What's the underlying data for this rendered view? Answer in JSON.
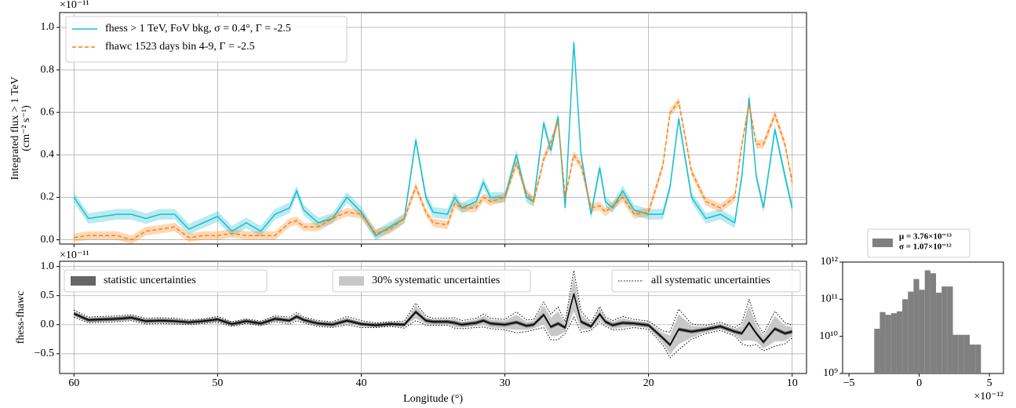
{
  "chart_data": [
    {
      "type": "line",
      "x": [
        60,
        59,
        58,
        57,
        56,
        55,
        54,
        53,
        52,
        51,
        50,
        49,
        48,
        47,
        46,
        45,
        44.5,
        44,
        43,
        42,
        41,
        40,
        39,
        38,
        37,
        36.2,
        35.5,
        35,
        34,
        33.5,
        33,
        32,
        31.5,
        31,
        30,
        29.2,
        28.5,
        28,
        27.3,
        26.8,
        26.3,
        25.8,
        25.2,
        24.7,
        24,
        23.4,
        23,
        22.5,
        21.8,
        21,
        20,
        19,
        18.5,
        17.9,
        17,
        16,
        15,
        14,
        13.5,
        13,
        12.5,
        12,
        11.2,
        10.5,
        10
      ],
      "xlim": [
        61,
        9
      ],
      "xticks": [
        60,
        50,
        40,
        30,
        20,
        10
      ],
      "ylim": [
        -0.02,
        1.07
      ],
      "yticks": [
        {
          "value": 0,
          "label": "0.0"
        },
        0.2,
        0.4,
        0.6,
        0.8,
        {
          "value": 1,
          "label": "1.0"
        }
      ],
      "y_offset_label": "×10⁻¹¹",
      "ylabel": [
        "Integrated flux > 1 TeV",
        "(cm⁻² s⁻¹)"
      ],
      "grid": true,
      "legend": "upper left",
      "series": [
        {
          "name": "fhess > 1 TeV, FoV bkg, σ = 0.4°, Γ = -2.5",
          "color": "#17becf",
          "linestyle": "solid",
          "band_error": 0.025,
          "values": [
            0.2,
            0.1,
            0.11,
            0.12,
            0.12,
            0.1,
            0.12,
            0.12,
            0.05,
            0.08,
            0.11,
            0.04,
            0.08,
            0.04,
            0.12,
            0.15,
            0.23,
            0.14,
            0.08,
            0.1,
            0.2,
            0.13,
            0.02,
            0.06,
            0.1,
            0.47,
            0.2,
            0.13,
            0.12,
            0.2,
            0.15,
            0.18,
            0.27,
            0.2,
            0.2,
            0.4,
            0.2,
            0.18,
            0.55,
            0.42,
            0.58,
            0.15,
            0.93,
            0.4,
            0.12,
            0.34,
            0.18,
            0.15,
            0.23,
            0.14,
            0.12,
            0.12,
            0.25,
            0.57,
            0.2,
            0.1,
            0.12,
            0.08,
            0.3,
            0.67,
            0.3,
            0.15,
            0.52,
            0.3,
            0.15
          ]
        },
        {
          "name": "fhawc 1523 days bin 4-9, Γ = -2.5",
          "color": "#ff7f0e",
          "linestyle": "dashed",
          "band_error": 0.02,
          "values": [
            0.01,
            0.02,
            0.02,
            0.02,
            0.0,
            0.04,
            0.05,
            0.06,
            0.01,
            0.02,
            0.02,
            0.03,
            0.02,
            0.02,
            0.02,
            0.08,
            0.09,
            0.06,
            0.06,
            0.1,
            0.13,
            0.12,
            0.03,
            0.05,
            0.1,
            0.25,
            0.13,
            0.08,
            0.07,
            0.17,
            0.15,
            0.15,
            0.2,
            0.18,
            0.2,
            0.36,
            0.22,
            0.18,
            0.38,
            0.46,
            0.56,
            0.2,
            0.4,
            0.35,
            0.15,
            0.16,
            0.13,
            0.16,
            0.2,
            0.12,
            0.13,
            0.35,
            0.6,
            0.65,
            0.32,
            0.18,
            0.15,
            0.2,
            0.45,
            0.64,
            0.45,
            0.45,
            0.59,
            0.45,
            0.27
          ]
        }
      ]
    },
    {
      "type": "residual",
      "ylim": [
        -0.84,
        1.09
      ],
      "yticks": [
        {
          "value": -0.5,
          "label": "−0.5"
        },
        {
          "value": 0,
          "label": "0.0"
        },
        0.5,
        {
          "value": 1,
          "label": "1.0"
        }
      ],
      "y_offset_label": "×10⁻¹¹",
      "ylabel": "fhess-fhawc",
      "xlabel": "Longitude (°)",
      "color": "#000000",
      "values": [
        0.19,
        0.08,
        0.09,
        0.1,
        0.12,
        0.06,
        0.07,
        0.06,
        0.04,
        0.06,
        0.09,
        0.01,
        0.06,
        0.02,
        0.1,
        0.07,
        0.14,
        0.08,
        0.02,
        0.0,
        0.07,
        0.01,
        -0.01,
        0.01,
        0.0,
        0.22,
        0.07,
        0.05,
        0.05,
        0.03,
        0.0,
        0.03,
        0.07,
        0.02,
        0.0,
        0.04,
        -0.02,
        0.0,
        0.17,
        -0.04,
        0.02,
        -0.05,
        0.53,
        0.05,
        -0.03,
        0.18,
        0.05,
        -0.01,
        0.03,
        0.02,
        -0.01,
        -0.23,
        -0.35,
        -0.08,
        -0.12,
        -0.08,
        -0.03,
        -0.12,
        -0.15,
        0.03,
        -0.15,
        -0.3,
        -0.07,
        -0.15,
        -0.12
      ],
      "bands": [
        {
          "name": "statistic uncertainties",
          "color": "#666666",
          "error": 0.03
        },
        {
          "name": "30% systematic uncertainties",
          "color": "#c8c8c8",
          "errors": [
            0.04,
            0.04,
            0.04,
            0.04,
            0.04,
            0.04,
            0.04,
            0.04,
            0.03,
            0.03,
            0.04,
            0.03,
            0.03,
            0.03,
            0.04,
            0.04,
            0.05,
            0.04,
            0.04,
            0.04,
            0.05,
            0.04,
            0.03,
            0.03,
            0.04,
            0.11,
            0.06,
            0.04,
            0.04,
            0.07,
            0.05,
            0.06,
            0.08,
            0.07,
            0.07,
            0.13,
            0.07,
            0.07,
            0.16,
            0.16,
            0.21,
            0.07,
            0.3,
            0.13,
            0.05,
            0.1,
            0.06,
            0.06,
            0.08,
            0.05,
            0.05,
            0.09,
            0.16,
            0.26,
            0.1,
            0.05,
            0.05,
            0.05,
            0.13,
            0.3,
            0.14,
            0.11,
            0.22,
            0.13,
            0.08
          ]
        },
        {
          "name": "all systematic uncertainties",
          "color": "#000000",
          "linestyle": "dotted",
          "errors": [
            0.06,
            0.05,
            0.05,
            0.05,
            0.05,
            0.05,
            0.05,
            0.05,
            0.04,
            0.04,
            0.05,
            0.04,
            0.04,
            0.04,
            0.05,
            0.06,
            0.07,
            0.05,
            0.05,
            0.05,
            0.07,
            0.06,
            0.04,
            0.04,
            0.06,
            0.15,
            0.08,
            0.06,
            0.06,
            0.09,
            0.07,
            0.08,
            0.11,
            0.09,
            0.09,
            0.18,
            0.1,
            0.09,
            0.22,
            0.22,
            0.28,
            0.1,
            0.4,
            0.18,
            0.07,
            0.13,
            0.08,
            0.08,
            0.11,
            0.07,
            0.07,
            0.12,
            0.22,
            0.35,
            0.13,
            0.07,
            0.07,
            0.07,
            0.18,
            0.4,
            0.19,
            0.15,
            0.3,
            0.18,
            0.11
          ]
        }
      ]
    },
    {
      "type": "histogram",
      "bins": [
        -3.2,
        -2.8,
        -2.4,
        -2.0,
        -1.6,
        -1.2,
        -0.8,
        -0.4,
        0.0,
        0.4,
        0.8,
        1.2,
        1.6,
        2.0,
        2.4,
        2.8,
        3.2,
        3.6,
        4.0,
        4.4
      ],
      "counts": [
        16000000000.0,
        45000000000.0,
        38000000000.0,
        42000000000.0,
        47000000000.0,
        100000000000.0,
        160000000000.0,
        350000000000.0,
        180000000000.0,
        600000000000.0,
        500000000000.0,
        150000000000.0,
        220000000000.0,
        220000000000.0,
        11000000000.0,
        11000000000.0,
        11000000000.0,
        6000000000.0,
        6000000000.0
      ],
      "color": "#808080",
      "xlim": [
        -5.45,
        6.0
      ],
      "xticks": [
        {
          "value": -5,
          "label": "−5"
        },
        0,
        5
      ],
      "x_offset_label": "×10⁻¹²",
      "log_y": true,
      "ylim": [
        1000000000.0,
        1000000000000.0
      ],
      "yticks": [
        {
          "value": 1000000000.0,
          "label": "10⁹"
        },
        {
          "value": 10000000000.0,
          "label": "10¹⁰"
        },
        {
          "value": 100000000000.0,
          "label": "10¹¹"
        },
        {
          "value": 1000000000000.0,
          "label": "10¹²"
        }
      ],
      "legend_lines": [
        "μ = 3.76×10⁻¹³",
        "σ = 1.07×10⁻¹²"
      ]
    }
  ]
}
